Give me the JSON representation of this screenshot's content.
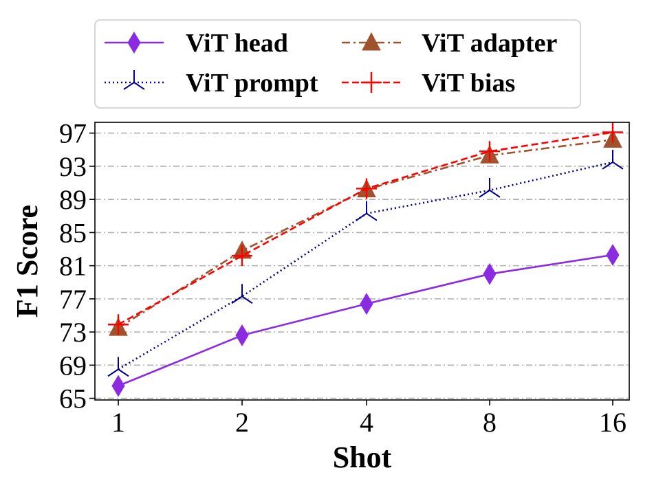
{
  "chart_data": {
    "type": "line",
    "title": "",
    "xlabel": "Shot",
    "ylabel": "F1 Score",
    "categories": [
      "1",
      "2",
      "4",
      "8",
      "16"
    ],
    "yticks": [
      65,
      69,
      73,
      77,
      81,
      85,
      89,
      93,
      97
    ],
    "ylim": [
      64.8,
      98.3
    ],
    "grid": "horizontal dash-dot",
    "legend_position": "top-center",
    "series": [
      {
        "name": "ViT head",
        "values": [
          66.5,
          72.6,
          76.4,
          80.0,
          82.3
        ],
        "color": "#8a2be2",
        "marker": "diamond",
        "dash": "solid"
      },
      {
        "name": "ViT prompt",
        "values": [
          68.5,
          77.3,
          87.3,
          90.1,
          93.5
        ],
        "color": "#00008b",
        "marker": "tri_down",
        "dash": "dotted"
      },
      {
        "name": "ViT adapter",
        "values": [
          73.5,
          82.8,
          90.2,
          94.3,
          96.2
        ],
        "color": "#a0522d",
        "marker": "triangle",
        "dash": "dashdot"
      },
      {
        "name": "ViT bias",
        "values": [
          73.9,
          82.2,
          90.3,
          94.8,
          97.1
        ],
        "color": "#ff0000",
        "marker": "plus",
        "dash": "dashed"
      }
    ],
    "legend_order": [
      "ViT head",
      "ViT adapter",
      "ViT prompt",
      "ViT bias"
    ]
  }
}
